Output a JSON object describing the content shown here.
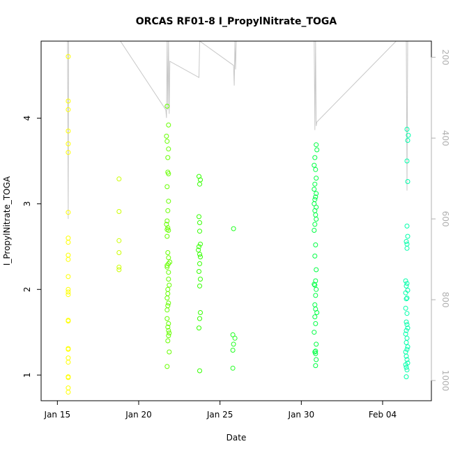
{
  "chart_data": {
    "type": "scatter",
    "title": "ORCAS RF01-8 I_PropylNitrate_TOGA",
    "xlabel": "Date",
    "ylabel": "I_PropylNitrate_TOGA",
    "x_ticks": [
      {
        "value": "2016-01-15",
        "label": "Jan 15"
      },
      {
        "value": "2016-01-20",
        "label": "Jan 20"
      },
      {
        "value": "2016-01-25",
        "label": "Jan 25"
      },
      {
        "value": "2016-01-30",
        "label": "Jan 30"
      },
      {
        "value": "2016-02-04",
        "label": "Feb 04"
      }
    ],
    "xlim": [
      "2016-01-14",
      "2016-02-07"
    ],
    "y_ticks": [
      1,
      2,
      3,
      4
    ],
    "ylim": [
      0.7,
      4.9
    ],
    "y2_ticks": [
      200,
      400,
      600,
      800,
      1000
    ],
    "y2lim": [
      1050,
      160
    ],
    "y2_reversed": true,
    "grid": false,
    "series": [
      {
        "color": "#ffff00",
        "points": [
          [
            "2016-01-15T16:00",
            4.72
          ],
          [
            "2016-01-15T16:00",
            4.2
          ],
          [
            "2016-01-15T16:00",
            4.1
          ],
          [
            "2016-01-15T16:00",
            3.85
          ],
          [
            "2016-01-15T16:00",
            3.7
          ],
          [
            "2016-01-15T16:00",
            3.6
          ],
          [
            "2016-01-15T16:00",
            2.9
          ],
          [
            "2016-01-15T16:00",
            2.6
          ],
          [
            "2016-01-15T16:00",
            2.55
          ],
          [
            "2016-01-15T16:00",
            2.4
          ],
          [
            "2016-01-15T16:00",
            2.35
          ],
          [
            "2016-01-15T16:00",
            2.15
          ],
          [
            "2016-01-15T16:00",
            2.0
          ],
          [
            "2016-01-15T16:00",
            1.97
          ],
          [
            "2016-01-15T16:00",
            1.94
          ],
          [
            "2016-01-15T16:00",
            1.64
          ],
          [
            "2016-01-15T16:00",
            1.63
          ],
          [
            "2016-01-15T16:00",
            1.31
          ],
          [
            "2016-01-15T16:00",
            1.3
          ],
          [
            "2016-01-15T16:00",
            1.2
          ],
          [
            "2016-01-15T16:00",
            1.15
          ],
          [
            "2016-01-15T16:00",
            0.98
          ],
          [
            "2016-01-15T16:00",
            0.97
          ],
          [
            "2016-01-15T16:00",
            0.85
          ],
          [
            "2016-01-15T16:00",
            0.8
          ]
        ]
      },
      {
        "color": "#ccff00",
        "points": [
          [
            "2016-01-18T19:00",
            3.29
          ],
          [
            "2016-01-18T19:00",
            2.91
          ],
          [
            "2016-01-18T19:00",
            2.57
          ],
          [
            "2016-01-18T19:00",
            2.43
          ],
          [
            "2016-01-18T19:00",
            2.26
          ],
          [
            "2016-01-18T19:00",
            2.23
          ]
        ]
      },
      {
        "color": "#66ff00",
        "points": [
          [
            "2016-01-21T18:00",
            4.14
          ],
          [
            "2016-01-21T20:00",
            3.92
          ],
          [
            "2016-01-21T17:00",
            3.79
          ],
          [
            "2016-01-21T18:00",
            3.73
          ],
          [
            "2016-01-21T20:00",
            3.64
          ],
          [
            "2016-01-21T19:00",
            3.54
          ],
          [
            "2016-01-21T19:00",
            3.37
          ],
          [
            "2016-01-21T20:00",
            3.35
          ],
          [
            "2016-01-21T18:00",
            3.2
          ],
          [
            "2016-01-21T20:00",
            3.03
          ],
          [
            "2016-01-21T19:00",
            2.92
          ],
          [
            "2016-01-21T18:00",
            2.8
          ],
          [
            "2016-01-21T17:00",
            2.76
          ],
          [
            "2016-01-21T19:00",
            2.72
          ],
          [
            "2016-01-21T18:00",
            2.7
          ],
          [
            "2016-01-21T20:00",
            2.69
          ],
          [
            "2016-01-21T18:00",
            2.62
          ],
          [
            "2016-01-21T19:00",
            2.43
          ],
          [
            "2016-01-21T20:00",
            2.37
          ],
          [
            "2016-01-21T22:00",
            2.32
          ],
          [
            "2016-01-21T20:00",
            2.3
          ],
          [
            "2016-01-21T18:00",
            2.28
          ],
          [
            "2016-01-21T18:00",
            2.26
          ],
          [
            "2016-01-21T20:00",
            2.2
          ],
          [
            "2016-01-21T20:00",
            2.12
          ],
          [
            "2016-01-21T21:00",
            2.05
          ],
          [
            "2016-01-21T19:00",
            2.0
          ],
          [
            "2016-01-21T19:00",
            1.95
          ],
          [
            "2016-01-21T18:00",
            1.9
          ],
          [
            "2016-01-21T20:00",
            1.84
          ],
          [
            "2016-01-21T19:00",
            1.81
          ],
          [
            "2016-01-21T18:00",
            1.76
          ],
          [
            "2016-01-21T18:00",
            1.66
          ],
          [
            "2016-01-21T20:00",
            1.6
          ],
          [
            "2016-01-21T19:00",
            1.56
          ],
          [
            "2016-01-21T20:00",
            1.52
          ],
          [
            "2016-01-21T21:00",
            1.49
          ],
          [
            "2016-01-21T20:00",
            1.46
          ],
          [
            "2016-01-21T19:00",
            1.4
          ],
          [
            "2016-01-21T21:00",
            1.27
          ],
          [
            "2016-01-21T18:00",
            1.1
          ]
        ]
      },
      {
        "color": "#33ff00",
        "points": [
          [
            "2016-01-23T17:00",
            3.32
          ],
          [
            "2016-01-23T19:00",
            3.28
          ],
          [
            "2016-01-23T18:00",
            3.23
          ],
          [
            "2016-01-23T17:00",
            2.85
          ],
          [
            "2016-01-23T18:00",
            2.78
          ],
          [
            "2016-01-23T18:00",
            2.68
          ],
          [
            "2016-01-23T19:00",
            2.53
          ],
          [
            "2016-01-23T17:00",
            2.5
          ],
          [
            "2016-01-23T16:00",
            2.46
          ],
          [
            "2016-01-23T18:00",
            2.41
          ],
          [
            "2016-01-23T19:00",
            2.38
          ],
          [
            "2016-01-23T18:00",
            2.3
          ],
          [
            "2016-01-23T17:00",
            2.21
          ],
          [
            "2016-01-23T19:00",
            2.12
          ],
          [
            "2016-01-23T18:00",
            2.04
          ],
          [
            "2016-01-23T19:00",
            1.73
          ],
          [
            "2016-01-23T18:00",
            1.66
          ],
          [
            "2016-01-23T17:00",
            1.55
          ],
          [
            "2016-01-23T18:00",
            1.05
          ]
        ]
      },
      {
        "color": "#22ff22",
        "points": [
          [
            "2016-01-25T20:00",
            2.71
          ],
          [
            "2016-01-25T19:00",
            1.47
          ],
          [
            "2016-01-25T22:00",
            1.43
          ],
          [
            "2016-01-25T20:00",
            1.36
          ],
          [
            "2016-01-25T19:00",
            1.29
          ],
          [
            "2016-01-25T19:00",
            1.08
          ]
        ]
      },
      {
        "color": "#00ff44",
        "points": [
          [
            "2016-01-30T22:00",
            3.69
          ],
          [
            "2016-01-30T23:00",
            3.63
          ],
          [
            "2016-01-30T20:00",
            3.54
          ],
          [
            "2016-01-30T19:00",
            3.45
          ],
          [
            "2016-01-30T21:00",
            3.4
          ],
          [
            "2016-01-30T22:00",
            3.3
          ],
          [
            "2016-01-30T20:00",
            3.23
          ],
          [
            "2016-01-30T19:00",
            3.17
          ],
          [
            "2016-01-30T22:00",
            3.12
          ],
          [
            "2016-01-30T21:00",
            3.08
          ],
          [
            "2016-01-30T20:00",
            3.05
          ],
          [
            "2016-01-30T19:00",
            3.0
          ],
          [
            "2016-01-30T22:00",
            2.96
          ],
          [
            "2016-01-30T20:00",
            2.92
          ],
          [
            "2016-01-30T21:00",
            2.87
          ],
          [
            "2016-01-30T22:00",
            2.82
          ],
          [
            "2016-01-30T20:00",
            2.76
          ],
          [
            "2016-01-30T19:00",
            2.69
          ],
          [
            "2016-01-30T21:00",
            2.52
          ],
          [
            "2016-01-30T20:00",
            2.39
          ],
          [
            "2016-01-30T22:00",
            2.23
          ],
          [
            "2016-01-30T21:00",
            2.1
          ],
          [
            "2016-01-30T19:00",
            2.06
          ],
          [
            "2016-01-30T20:00",
            2.05
          ],
          [
            "2016-01-30T22:00",
            2.0
          ],
          [
            "2016-01-30T21:00",
            1.93
          ],
          [
            "2016-01-30T20:00",
            1.82
          ],
          [
            "2016-01-30T21:00",
            1.77
          ],
          [
            "2016-01-30T23:00",
            1.73
          ],
          [
            "2016-01-30T20:00",
            1.68
          ],
          [
            "2016-01-30T21:00",
            1.6
          ],
          [
            "2016-01-30T19:00",
            1.5
          ],
          [
            "2016-01-30T22:00",
            1.36
          ],
          [
            "2016-01-30T21:00",
            1.28
          ],
          [
            "2016-01-30T20:00",
            1.27
          ],
          [
            "2016-01-30T21:00",
            1.25
          ],
          [
            "2016-01-30T22:00",
            1.18
          ],
          [
            "2016-01-30T21:00",
            1.11
          ]
        ]
      },
      {
        "color": "#00ffaa",
        "points": [
          [
            "2016-02-05T12:00",
            3.87
          ],
          [
            "2016-02-05T14:00",
            3.8
          ],
          [
            "2016-02-05T13:00",
            3.74
          ],
          [
            "2016-02-05T12:00",
            3.5
          ],
          [
            "2016-02-05T13:00",
            3.26
          ],
          [
            "2016-02-05T12:00",
            2.74
          ],
          [
            "2016-02-05T13:00",
            2.62
          ],
          [
            "2016-02-05T11:00",
            2.56
          ],
          [
            "2016-02-05T12:00",
            2.53
          ],
          [
            "2016-02-05T12:00",
            2.48
          ],
          [
            "2016-02-05T10:00",
            2.1
          ],
          [
            "2016-02-05T12:00",
            2.07
          ],
          [
            "2016-02-05T11:00",
            2.04
          ],
          [
            "2016-02-05T13:00",
            1.99
          ],
          [
            "2016-02-05T10:00",
            1.96
          ],
          [
            "2016-02-05T12:00",
            1.9
          ],
          [
            "2016-02-05T11:00",
            1.89
          ],
          [
            "2016-02-05T10:00",
            1.78
          ],
          [
            "2016-02-05T12:00",
            1.72
          ],
          [
            "2016-02-05T11:00",
            1.62
          ],
          [
            "2016-02-05T12:00",
            1.59
          ],
          [
            "2016-02-05T13:00",
            1.55
          ],
          [
            "2016-02-05T11:00",
            1.52
          ],
          [
            "2016-02-05T10:00",
            1.48
          ],
          [
            "2016-02-05T12:00",
            1.43
          ],
          [
            "2016-02-05T11:00",
            1.38
          ],
          [
            "2016-02-05T13:00",
            1.33
          ],
          [
            "2016-02-05T12:00",
            1.3
          ],
          [
            "2016-02-05T10:00",
            1.27
          ],
          [
            "2016-02-05T11:00",
            1.22
          ],
          [
            "2016-02-05T12:00",
            1.18
          ],
          [
            "2016-02-05T13:00",
            1.14
          ],
          [
            "2016-02-05T10:00",
            1.12
          ],
          [
            "2016-02-05T11:00",
            1.09
          ],
          [
            "2016-02-05T12:00",
            1.06
          ],
          [
            "2016-02-05T11:00",
            0.98
          ]
        ]
      }
    ],
    "altitude_line": {
      "color": "#c8c8c8",
      "axis": "right",
      "points": [
        [
          "2016-01-15T15:00",
          160
        ],
        [
          "2016-01-15T16:00",
          600
        ],
        [
          "2016-01-15T16:30",
          160
        ],
        [
          "2016-01-18T21:00",
          160
        ],
        [
          "2016-01-21T16:00",
          330
        ],
        [
          "2016-01-21T17:00",
          350
        ],
        [
          "2016-01-21T18:00",
          160
        ],
        [
          "2016-01-21T19:00",
          330
        ],
        [
          "2016-01-21T20:00",
          160
        ],
        [
          "2016-01-21T21:00",
          340
        ],
        [
          "2016-01-21T22:00",
          210
        ],
        [
          "2016-01-23T17:00",
          250
        ],
        [
          "2016-01-23T18:00",
          160
        ],
        [
          "2016-01-25T20:00",
          220
        ],
        [
          "2016-01-25T21:00",
          270
        ],
        [
          "2016-01-25T22:00",
          160
        ],
        [
          "2016-01-25T23:00",
          230
        ],
        [
          "2016-01-26T00:00",
          160
        ],
        [
          "2016-01-30T19:00",
          160
        ],
        [
          "2016-01-30T20:00",
          380
        ],
        [
          "2016-01-30T21:00",
          160
        ],
        [
          "2016-01-30T22:00",
          370
        ],
        [
          "2016-01-30T23:00",
          360
        ],
        [
          "2016-02-04T20:00",
          160
        ],
        [
          "2016-02-05T11:00",
          160
        ],
        [
          "2016-02-05T12:00",
          530
        ],
        [
          "2016-02-05T13:00",
          160
        ]
      ]
    }
  }
}
